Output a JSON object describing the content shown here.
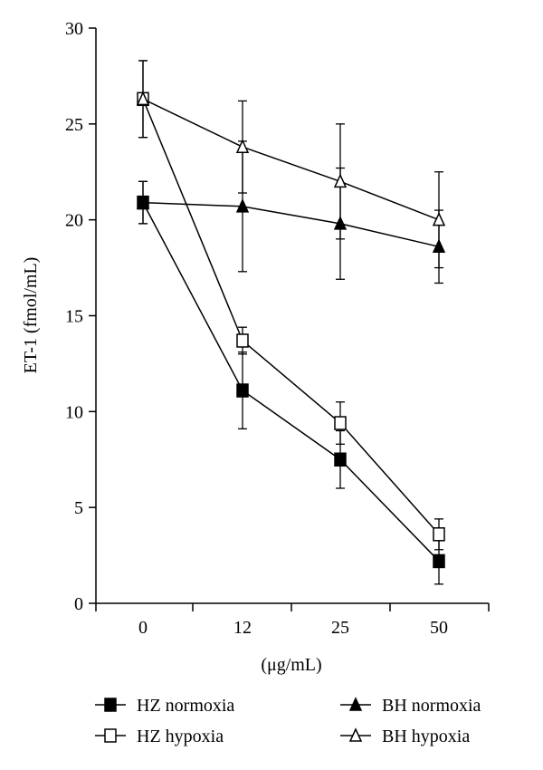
{
  "chart_data": {
    "type": "line",
    "title": "",
    "xlabel": "(μg/mL)",
    "ylabel": "ET-1 (fmol/mL)",
    "categories": [
      "0",
      "12",
      "25",
      "50"
    ],
    "ylim": [
      0,
      30
    ],
    "yticks": [
      "0",
      "5",
      "10",
      "15",
      "20",
      "25",
      "30"
    ],
    "grid": false,
    "legend_placement": "bottom",
    "series": [
      {
        "name": "HZ normoxia",
        "marker": "filled-square",
        "values": [
          20.9,
          11.1,
          7.5,
          2.2
        ],
        "errors": [
          1.1,
          2.0,
          1.5,
          1.2
        ]
      },
      {
        "name": "HZ hypoxia",
        "marker": "open-square",
        "values": [
          26.3,
          13.7,
          9.4,
          3.6
        ],
        "errors": [
          2.0,
          0.7,
          1.1,
          0.8
        ]
      },
      {
        "name": "BH normoxia",
        "marker": "filled-triangle",
        "values": [
          20.9,
          20.7,
          19.8,
          18.6
        ],
        "errors": [
          1.1,
          3.4,
          2.9,
          1.9
        ]
      },
      {
        "name": "BH hypoxia",
        "marker": "open-triangle",
        "values": [
          26.3,
          23.8,
          22.0,
          20.0
        ],
        "errors": [
          2.0,
          2.4,
          3.0,
          2.5
        ]
      }
    ]
  }
}
